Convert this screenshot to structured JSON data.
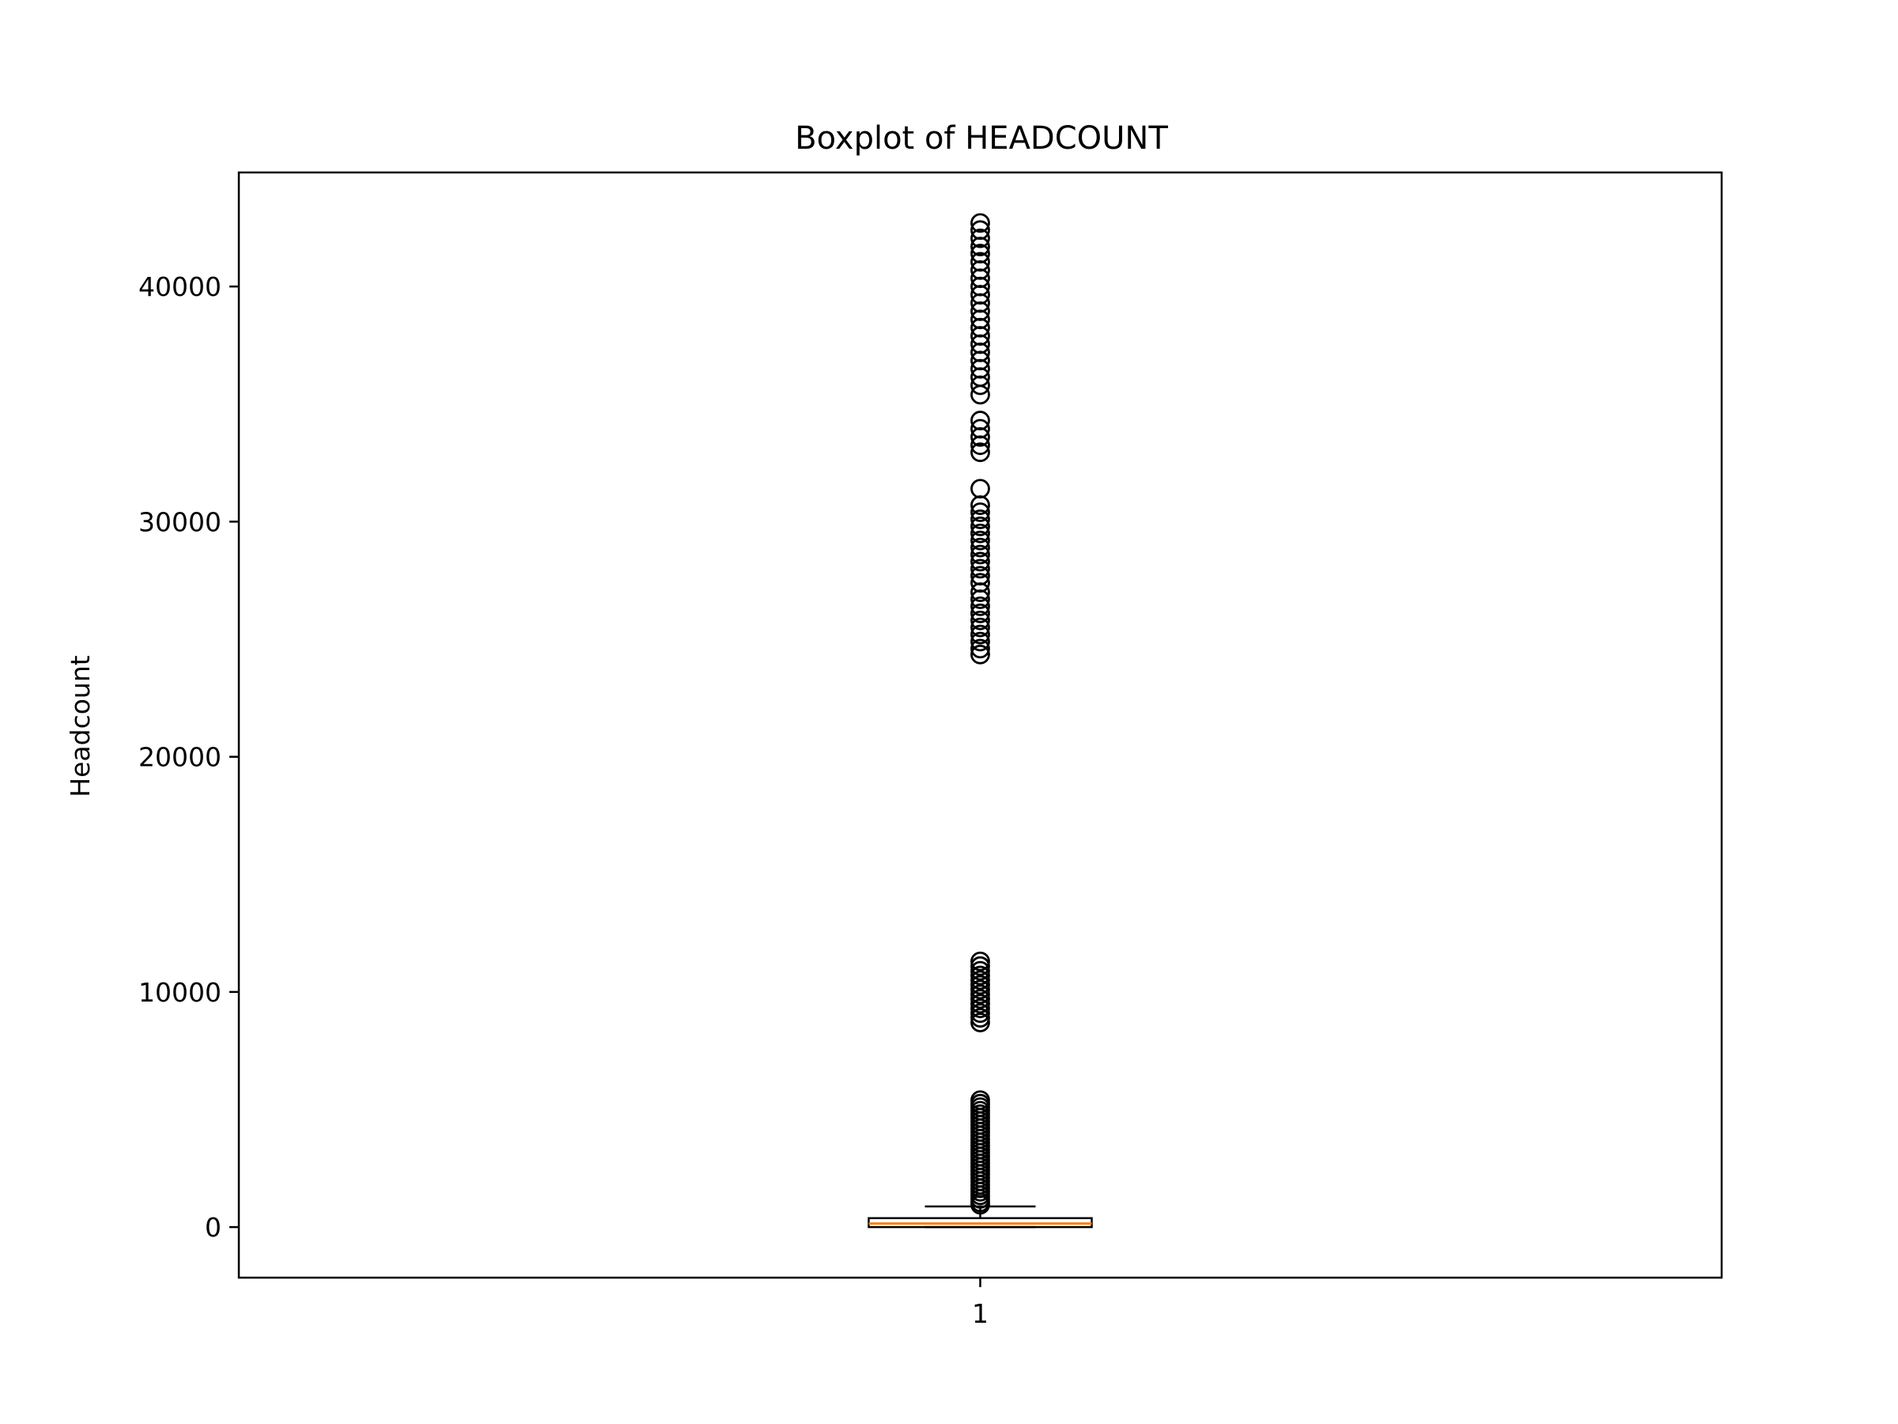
{
  "chart_data": {
    "type": "boxplot",
    "title": "Boxplot of HEADCOUNT",
    "xlabel": "",
    "ylabel": "Headcount",
    "categories": [
      "1"
    ],
    "ylim": [
      -2150,
      44850
    ],
    "yticks": [
      0,
      10000,
      20000,
      30000,
      40000
    ],
    "grid": false,
    "colors": {
      "box": "#000000",
      "median": "#ff7f0e",
      "flier": "#000000",
      "frame": "#000000"
    },
    "boxes": [
      {
        "category": "1",
        "whisker_low": 0,
        "q1": 0,
        "median": 150,
        "q3": 380,
        "whisker_high": 880,
        "outliers": [
          42700,
          42400,
          42050,
          41700,
          41400,
          41050,
          40700,
          40350,
          40000,
          39650,
          39300,
          38950,
          38600,
          38250,
          37900,
          37550,
          37200,
          36850,
          36500,
          36150,
          35800,
          35400,
          34300,
          33950,
          33600,
          33250,
          32950,
          31400,
          30700,
          30400,
          30100,
          29800,
          29500,
          29200,
          28900,
          28600,
          28300,
          28000,
          27700,
          27400,
          27000,
          26700,
          26400,
          26100,
          25800,
          25500,
          25200,
          24900,
          24600,
          24350,
          11300,
          11100,
          10900,
          10700,
          10500,
          10300,
          10100,
          9900,
          9700,
          9500,
          9300,
          9100,
          8900,
          8700,
          5400,
          5250,
          5100,
          4950,
          4800,
          4650,
          4500,
          4350,
          4200,
          4050,
          3900,
          3750,
          3600,
          3450,
          3300,
          3150,
          3000,
          2850,
          2700,
          2550,
          2400,
          2250,
          2100,
          1950,
          1800,
          1650,
          1500,
          1350,
          1200,
          1050,
          950
        ]
      }
    ]
  }
}
